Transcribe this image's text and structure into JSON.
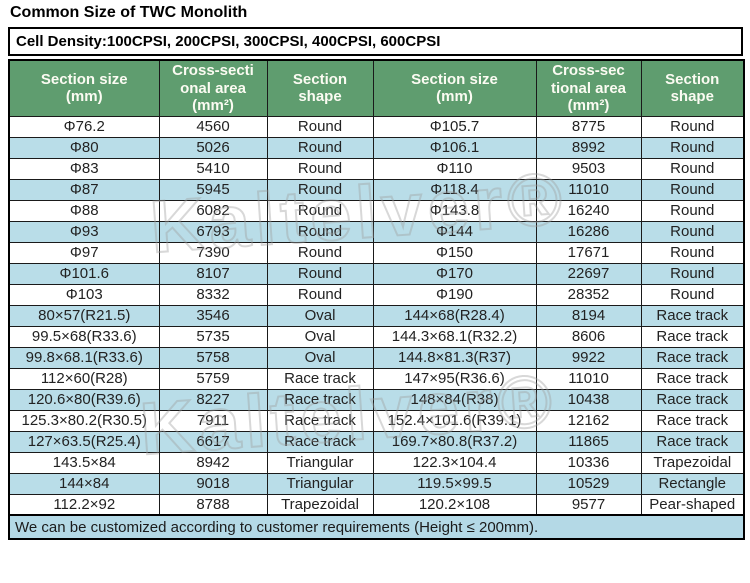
{
  "page": {
    "title": "Common Size of TWC Monolith",
    "cell_density": "Cell Density:100CPSI, 200CPSI, 300CPSI, 400CPSI, 600CPSI",
    "footer_note": "We can be customized according to customer requirements (Height ≤ 200mm).",
    "watermark": "Kaltelver®"
  },
  "colors": {
    "header_bg": "#5f9d6f",
    "header_text": "#fbfbf2",
    "row_alt_bg": "#b9dde8",
    "footer_bg": "#b4d9e6",
    "border": "#000000"
  },
  "table": {
    "headers": [
      "Section size\n(mm)",
      "Cross-secti\nonal area\n(mm²)",
      "Section\nshape",
      "Section size\n(mm)",
      "Cross-sec\ntional area\n(mm²)",
      "Section\nshape"
    ],
    "rows": [
      [
        "Φ76.2",
        "4560",
        "Round",
        "Φ105.7",
        "8775",
        "Round"
      ],
      [
        "Φ80",
        "5026",
        "Round",
        "Φ106.1",
        "8992",
        "Round"
      ],
      [
        "Φ83",
        "5410",
        "Round",
        "Φ110",
        "9503",
        "Round"
      ],
      [
        "Φ87",
        "5945",
        "Round",
        "Φ118.4",
        "11010",
        "Round"
      ],
      [
        "Φ88",
        "6082",
        "Round",
        "Φ143.8",
        "16240",
        "Round"
      ],
      [
        "Φ93",
        "6793",
        "Round",
        "Φ144",
        "16286",
        "Round"
      ],
      [
        "Φ97",
        "7390",
        "Round",
        "Φ150",
        "17671",
        "Round"
      ],
      [
        "Φ101.6",
        "8107",
        "Round",
        "Φ170",
        "22697",
        "Round"
      ],
      [
        "Φ103",
        "8332",
        "Round",
        "Φ190",
        "28352",
        "Round"
      ],
      [
        "80×57(R21.5)",
        "3546",
        "Oval",
        "144×68(R28.4)",
        "8194",
        "Race track"
      ],
      [
        "99.5×68(R33.6)",
        "5735",
        "Oval",
        "144.3×68.1(R32.2)",
        "8606",
        "Race track"
      ],
      [
        "99.8×68.1(R33.6)",
        "5758",
        "Oval",
        "144.8×81.3(R37)",
        "9922",
        "Race track"
      ],
      [
        "112×60(R28)",
        "5759",
        "Race track",
        "147×95(R36.6)",
        "11010",
        "Race track"
      ],
      [
        "120.6×80(R39.6)",
        "8227",
        "Race track",
        "148×84(R38)",
        "10438",
        "Race track"
      ],
      [
        "125.3×80.2(R30.5)",
        "7911",
        "Race track",
        "152.4×101.6(R39.1)",
        "12162",
        "Race track"
      ],
      [
        "127×63.5(R25.4)",
        "6617",
        "Race track",
        "169.7×80.8(R37.2)",
        "11865",
        "Race track"
      ],
      [
        "143.5×84",
        "8942",
        "Triangular",
        "122.3×104.4",
        "10336",
        "Trapezoidal"
      ],
      [
        "144×84",
        "9018",
        "Triangular",
        "119.5×99.5",
        "10529",
        "Rectangle"
      ],
      [
        "112.2×92",
        "8788",
        "Trapezoidal",
        "120.2×108",
        "9577",
        "Pear-shaped"
      ]
    ]
  }
}
